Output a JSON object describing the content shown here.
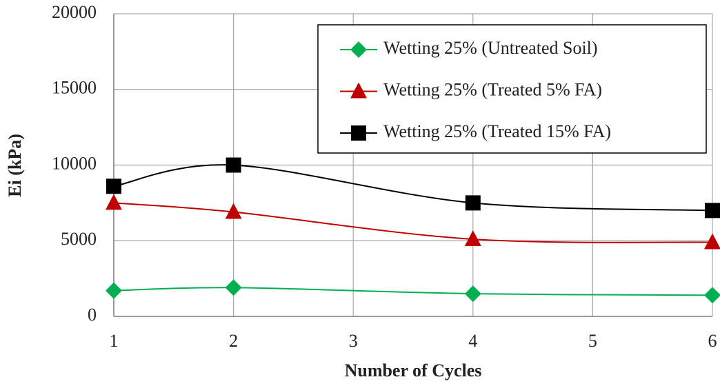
{
  "chart_data": {
    "type": "line",
    "x_label": "Number of Cycles",
    "y_label": "Ei (kPa)",
    "x": [
      1,
      2,
      4,
      6
    ],
    "series": [
      {
        "name": "Wetting 25% (Untreated Soil)",
        "color": "#00b050",
        "marker": "diamond",
        "values": [
          1700,
          1900,
          1500,
          1400
        ]
      },
      {
        "name": "Wetting 25% (Treated 5% FA)",
        "color": "#c00000",
        "marker": "triangle",
        "values": [
          7500,
          6900,
          5100,
          4900
        ]
      },
      {
        "name": "Wetting 25% (Treated 15% FA)",
        "color": "#000000",
        "marker": "square",
        "values": [
          8600,
          10000,
          7500,
          7000
        ]
      }
    ],
    "xlim": [
      1,
      6
    ],
    "xticks": [
      1,
      2,
      3,
      4,
      5,
      6
    ],
    "ylim": [
      0,
      20000
    ],
    "yticks": [
      0,
      5000,
      10000,
      15000,
      20000
    ],
    "grid": true,
    "smooth": true,
    "legend": "upper right"
  }
}
